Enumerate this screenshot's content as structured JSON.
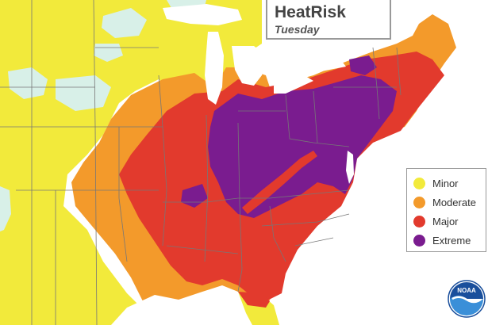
{
  "title": "HeatRisk",
  "subtitle": "Tuesday",
  "legend": [
    {
      "label": "Minor",
      "color": "#f2ea3b"
    },
    {
      "label": "Moderate",
      "color": "#f39a2b"
    },
    {
      "label": "Major",
      "color": "#e23a2d"
    },
    {
      "label": "Extreme",
      "color": "#7a1c8f"
    }
  ],
  "logo": {
    "text": "NOAA",
    "icon": "noaa-logo-icon"
  },
  "colors": {
    "water": "#ffffff",
    "none": "#d8f0e8",
    "minor": "#f2ea3b",
    "moderate": "#f39a2b",
    "major": "#e23a2d",
    "extreme": "#7a1c8f",
    "lake": "#ffffff",
    "border": "#777777"
  }
}
